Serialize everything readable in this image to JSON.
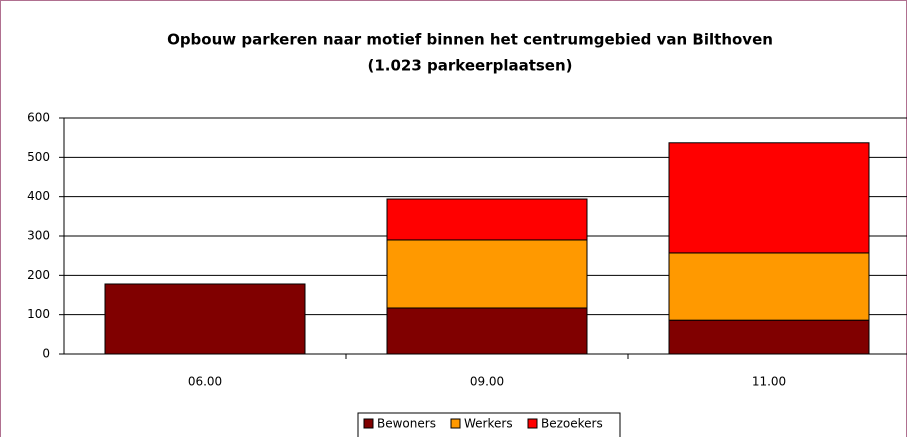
{
  "chart_data": {
    "type": "stacked-bar",
    "title": "Opbouw parkeren naar motief binnen het centrumgebied van Bilthoven",
    "subtitle": "(1.023 parkeerplaatsen)",
    "categories": [
      "06.00",
      "09.00",
      "11.00"
    ],
    "series": [
      {
        "name": "Bewoners",
        "color": "#800000",
        "values": [
          178,
          117,
          86
        ]
      },
      {
        "name": "Werkers",
        "color": "#ff9900",
        "values": [
          0,
          173,
          171
        ]
      },
      {
        "name": "Bezoekers",
        "color": "#ff0000",
        "values": [
          0,
          104,
          280
        ]
      }
    ],
    "ylim": [
      0,
      600
    ],
    "yticks": [
      0,
      100,
      200,
      300,
      400,
      500,
      600
    ],
    "grid": true,
    "legend": "bottom"
  }
}
